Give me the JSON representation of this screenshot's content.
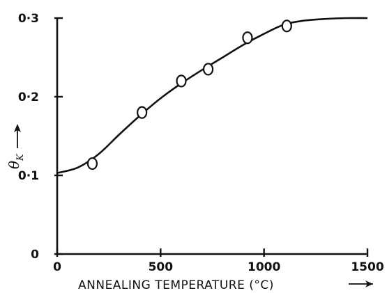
{
  "chart_data": {
    "type": "scatter",
    "title": "",
    "xlabel": "ANNEALING TEMPERATURE (°C)",
    "ylabel_symbol": "θ",
    "ylabel_subscript": "K",
    "xlim": [
      0,
      1500
    ],
    "ylim": [
      0,
      0.3
    ],
    "xticks": [
      0,
      500,
      1000,
      1500
    ],
    "yticks": [
      0,
      0.1,
      0.2,
      0.3
    ],
    "xtick_labels": [
      "0",
      "500",
      "1000",
      "1500"
    ],
    "ytick_labels": [
      "0",
      "0·1",
      "0·2",
      "0·3"
    ],
    "grid": false,
    "legend": "none",
    "series": [
      {
        "kind": "points",
        "marker": "open-circle",
        "x": [
          170,
          410,
          600,
          730,
          920,
          1110
        ],
        "y": [
          0.115,
          0.18,
          0.22,
          0.235,
          0.275,
          0.29
        ]
      },
      {
        "kind": "fitted-curve",
        "x": [
          0,
          100,
          200,
          300,
          400,
          500,
          600,
          700,
          800,
          900,
          1000,
          1100,
          1200,
          1300,
          1400,
          1500
        ],
        "y": [
          0.103,
          0.11,
          0.127,
          0.152,
          0.176,
          0.198,
          0.217,
          0.234,
          0.25,
          0.266,
          0.28,
          0.292,
          0.297,
          0.299,
          0.3,
          0.3
        ]
      }
    ],
    "colors": {
      "ink": "#111111",
      "background": "#ffffff"
    }
  }
}
